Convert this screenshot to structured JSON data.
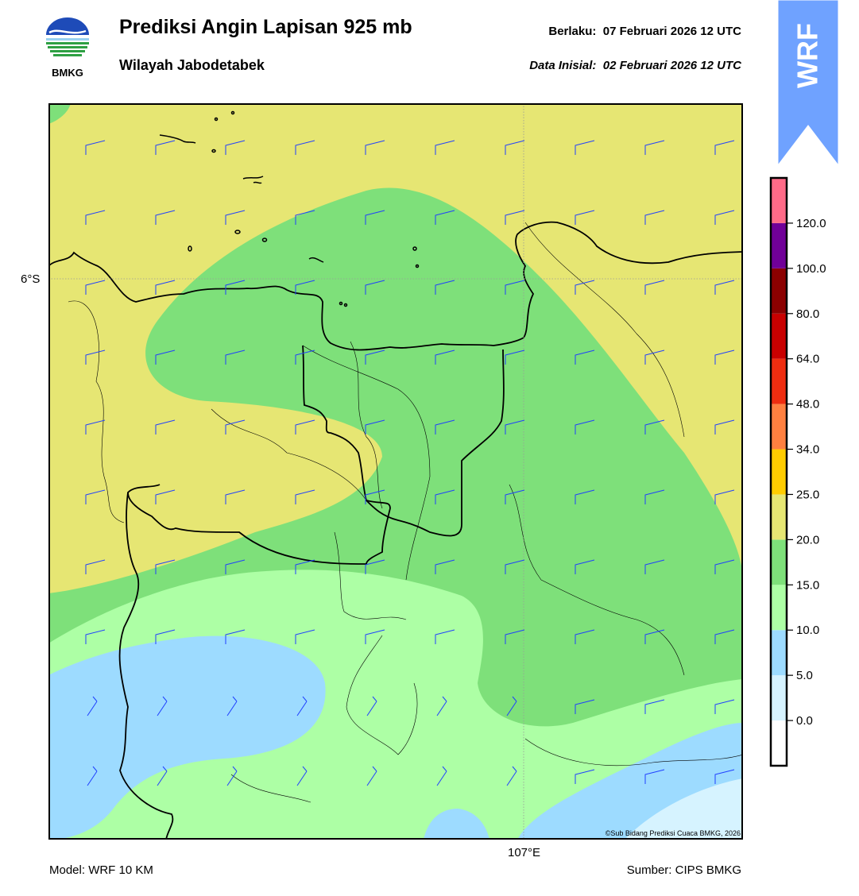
{
  "header": {
    "logo_text": "BMKG",
    "title": "Prediksi Angin Lapisan 925 mb",
    "subtitle": "Wilayah Jabodetabek",
    "valid_label": "Berlaku:",
    "valid_time": "07 Februari 2026 12 UTC",
    "init_label": "Data Inisial:",
    "init_time": "02 Februari 2026 12 UTC",
    "badge_text": "WRF"
  },
  "map": {
    "lat_tick": "6°S",
    "lon_tick": "107°E",
    "copyright": "©Sub Bidang Prediksi Cuaca BMKG, 2026",
    "barb_color": "#1f3fff",
    "coast_color": "#000000"
  },
  "legend": {
    "ticks": [
      "0.0",
      "5.0",
      "10.0",
      "15.0",
      "20.0",
      "25.0",
      "34.0",
      "48.0",
      "64.0",
      "80.0",
      "100.0",
      "120.0"
    ],
    "colors": [
      "#ffffff",
      "#d6f3ff",
      "#9ddbff",
      "#adffa5",
      "#7ee07a",
      "#e6e673",
      "#ffcc00",
      "#ff8040",
      "#ee2d10",
      "#c80000",
      "#8b0000",
      "#700098",
      "#ff6b88"
    ]
  },
  "footer": {
    "model": "Model: WRF 10 KM",
    "source": "Sumber: CIPS BMKG"
  }
}
